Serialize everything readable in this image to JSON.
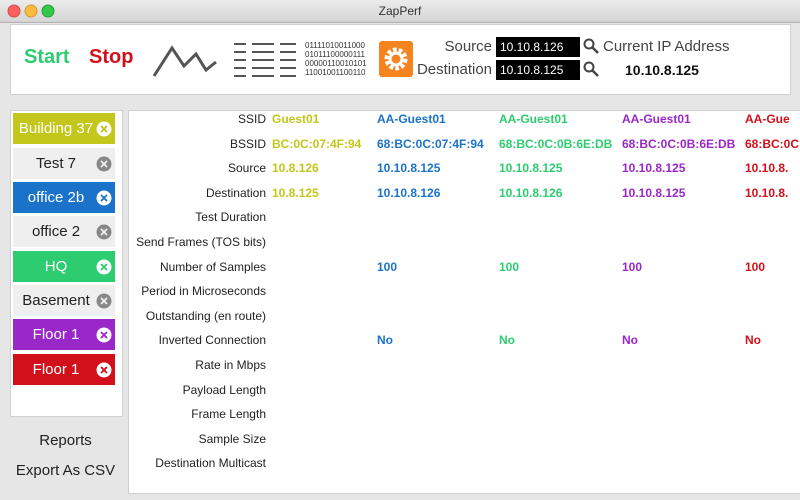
{
  "window": {
    "title": "ZapPerf"
  },
  "toolbar": {
    "start": "Start",
    "stop": "Stop",
    "binary": [
      "01111010011000",
      "01011100000111",
      "00000110010101",
      "11001001100110"
    ],
    "source_label": "Source",
    "source_value": "10.10.8.126",
    "destination_label": "Destination",
    "destination_value": "10.10.8.125",
    "current_ip_label": "Current IP Address",
    "current_ip": "10.10.8.125"
  },
  "sidebar": {
    "items": [
      {
        "label": "Building 37",
        "color": "#c3c61b"
      },
      {
        "label": "Test 7"
      },
      {
        "label": "office 2b",
        "color": "#1b73c9"
      },
      {
        "label": "office 2"
      },
      {
        "label": "HQ",
        "color": "#2dcc70"
      },
      {
        "label": "Basement"
      },
      {
        "label": "Floor 1",
        "color": "#9a27c8"
      },
      {
        "label": "Floor 1",
        "color": "#d2101b"
      }
    ],
    "actions": [
      "Reports",
      "Export As CSV"
    ]
  },
  "table": {
    "row_labels": [
      "SSID",
      "BSSID",
      "Source",
      "Destination",
      "Test Duration",
      "Send Frames (TOS bits)",
      "Number of Samples",
      "Period in Microseconds",
      "Outstanding (en route)",
      "Inverted Connection",
      "Rate in Mbps",
      "Payload Length",
      "Frame Length",
      "Sample Size",
      "Destination Multicast"
    ],
    "columns": [
      {
        "color": "#c3c61b",
        "cells": [
          "Guest01",
          "BC:0C:07:4F:94",
          "10.8.126",
          "10.8.125",
          null,
          null,
          null,
          null,
          null,
          null,
          null,
          null,
          null,
          null,
          null
        ]
      },
      {
        "color": "#1b73c9",
        "cells": [
          "AA-Guest01",
          "68:BC:0C:07:4F:94",
          "10.10.8.125",
          "10.10.8.126",
          null,
          null,
          "100",
          null,
          null,
          "No",
          null,
          null,
          null,
          null,
          null
        ]
      },
      {
        "color": "#2dcc70",
        "cells": [
          "AA-Guest01",
          "68:BC:0C:0B:6E:DB",
          "10.10.8.125",
          "10.10.8.126",
          null,
          null,
          "100",
          null,
          null,
          "No",
          null,
          null,
          null,
          null,
          null
        ]
      },
      {
        "color": "#9a27c8",
        "cells": [
          "AA-Guest01",
          "68:BC:0C:0B:6E:DB",
          "10.10.8.125",
          "10.10.8.125",
          null,
          null,
          "100",
          null,
          null,
          "No",
          null,
          null,
          null,
          null,
          null
        ]
      },
      {
        "color": "#d2101b",
        "cells": [
          "AA-Gue",
          "68:BC:0C",
          "10.10.8.",
          "10.10.8.",
          null,
          null,
          "100",
          null,
          null,
          "No",
          null,
          null,
          null,
          null,
          null
        ]
      }
    ]
  }
}
